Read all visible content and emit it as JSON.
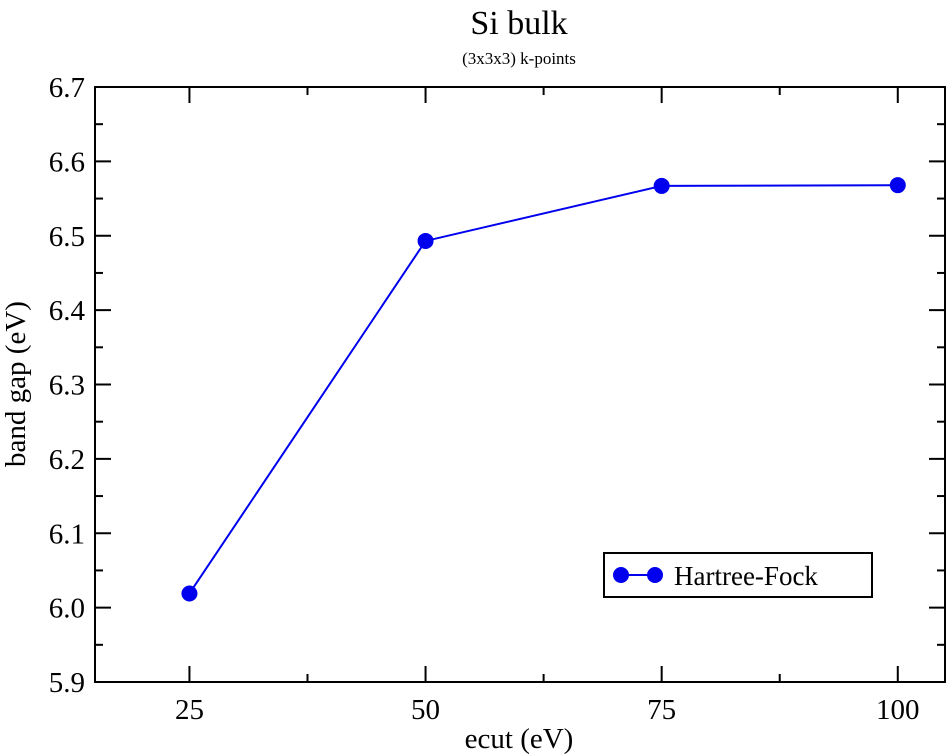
{
  "chart_data": {
    "type": "line",
    "title": "Si bulk",
    "subtitle": "(3x3x3) k-points",
    "xlabel": "ecut (eV)",
    "ylabel": "band gap (eV)",
    "xlim": [
      15,
      105
    ],
    "ylim": [
      5.9,
      6.7
    ],
    "x_ticks": [
      25,
      50,
      75,
      100
    ],
    "x_tick_labels": [
      "25",
      "50",
      "75",
      "100"
    ],
    "y_ticks": [
      5.9,
      6.0,
      6.1,
      6.2,
      6.3,
      6.4,
      6.5,
      6.6,
      6.7
    ],
    "y_tick_labels": [
      "5.9",
      "6.0",
      "6.1",
      "6.2",
      "6.3",
      "6.4",
      "6.5",
      "6.6",
      "6.7"
    ],
    "grid": false,
    "legend_position": "bottom-right",
    "series": [
      {
        "name": "Hartree-Fock",
        "color": "#0000ee",
        "marker": "circle",
        "x": [
          25,
          50,
          75,
          100
        ],
        "y": [
          6.019,
          6.493,
          6.567,
          6.568
        ]
      }
    ]
  }
}
